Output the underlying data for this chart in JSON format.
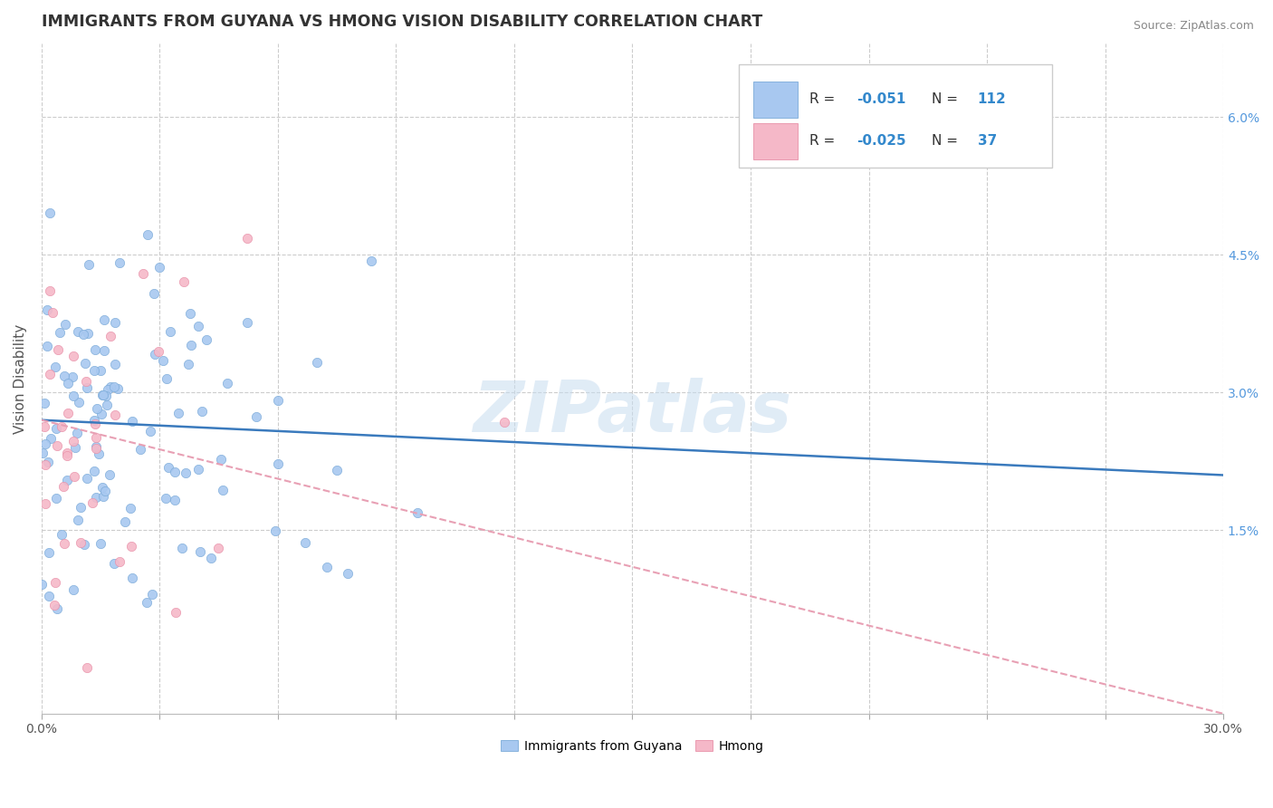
{
  "title": "IMMIGRANTS FROM GUYANA VS HMONG VISION DISABILITY CORRELATION CHART",
  "source": "Source: ZipAtlas.com",
  "ylabel": "Vision Disability",
  "xlim": [
    0.0,
    0.3
  ],
  "ylim": [
    -0.005,
    0.068
  ],
  "xticks": [
    0.0,
    0.03,
    0.06,
    0.09,
    0.12,
    0.15,
    0.18,
    0.21,
    0.24,
    0.27,
    0.3
  ],
  "xticklabels": [
    "0.0%",
    "",
    "",
    "",
    "",
    "",
    "",
    "",
    "",
    "",
    "30.0%"
  ],
  "yticks_right": [
    0.015,
    0.03,
    0.045,
    0.06
  ],
  "yticklabels_right": [
    "1.5%",
    "3.0%",
    "4.5%",
    "6.0%"
  ],
  "blue_color": "#a8c8f0",
  "blue_edge": "#7aaad8",
  "pink_color": "#f5b8c8",
  "pink_edge": "#e890a8",
  "trend_blue": "#3a7abd",
  "trend_pink": "#e8a0b4",
  "watermark": "ZIPatlas",
  "label_guyana": "Immigrants from Guyana",
  "label_hmong": "Hmong",
  "blue_N": 112,
  "pink_N": 37,
  "blue_trend_start": 0.027,
  "blue_trend_end": 0.021,
  "pink_trend_start": 0.027,
  "pink_trend_end": -0.005,
  "grid_color": "#cccccc",
  "title_color": "#333333",
  "source_color": "#888888",
  "right_tick_color": "#5599dd",
  "legend_r1": "-0.051",
  "legend_n1": "112",
  "legend_r2": "-0.025",
  "legend_n2": "37"
}
